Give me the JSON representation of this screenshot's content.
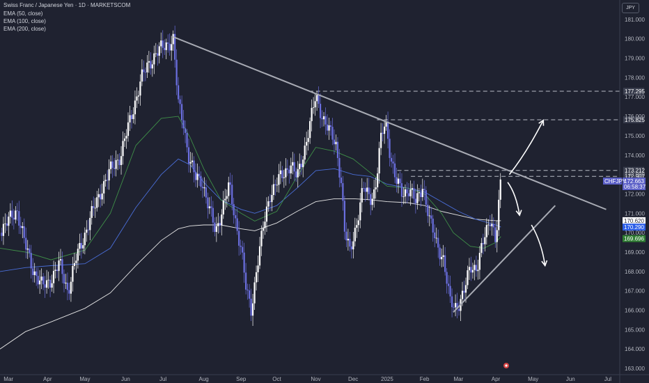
{
  "chart_data": {
    "type": "candlestick",
    "title": "Swiss Franc / Japanese Yen · 1D · MARKETSCOM",
    "currency": "JPY",
    "symbol": "CHFJPY",
    "indicators": [
      "EMA (50, close)",
      "EMA (100, close)",
      "EMA (200, close)"
    ],
    "y_ticks": [
      163,
      164,
      165,
      166,
      167,
      168,
      169,
      170,
      171,
      172,
      173,
      174,
      175,
      176,
      177,
      178,
      179,
      180,
      181
    ],
    "y_tick_labels": [
      "163.000",
      "164.000",
      "165.000",
      "166.000",
      "167.000",
      "168.000",
      "169.000",
      "170.000",
      "171.000",
      "172.000",
      "173.000",
      "174.000",
      "175.000",
      "176.000",
      "177.000",
      "178.000",
      "179.000",
      "180.000",
      "181.000"
    ],
    "ylim": [
      162.68,
      182.0
    ],
    "x_labels": [
      "Mar",
      "Apr",
      "May",
      "Jun",
      "Jul",
      "Aug",
      "Sep",
      "Oct",
      "Nov",
      "Dec",
      "2025",
      "Feb",
      "Mar",
      "Apr",
      "May",
      "Jun",
      "Jul"
    ],
    "x_label_pos": [
      0,
      23,
      45,
      69,
      91,
      115,
      137,
      158,
      181,
      203,
      223,
      245,
      265,
      287,
      309,
      331,
      353
    ],
    "xlim": [
      -5,
      360
    ],
    "levels": [
      {
        "value": 177.295,
        "label": "177.295",
        "x_start": 177
      },
      {
        "value": 175.825,
        "label": "175.825",
        "x_start": 217
      },
      {
        "value": 173.212,
        "label": "173.212",
        "x_start": 229
      },
      {
        "value": 172.907,
        "label": "172.907",
        "x_start": 237
      }
    ],
    "price_badges": [
      {
        "value": 172.663,
        "label": "172.663",
        "sub": "06:58:37",
        "color": "#5b5fc7"
      },
      {
        "value": 170.62,
        "label": "170.620",
        "color": "#ffffff",
        "text": "#1f2230"
      },
      {
        "value": 170.29,
        "label": "170.290",
        "color": "#2c5ee8"
      },
      {
        "value": 169.696,
        "label": "169.696",
        "color": "#2e7d32"
      }
    ],
    "trendlines": [
      {
        "name": "descending resistance",
        "x": [
          97,
          352
        ],
        "y": [
          180.1,
          171.2
        ]
      },
      {
        "name": "ascending support",
        "x": [
          262,
          322
        ],
        "y": [
          165.9,
          171.4
        ]
      }
    ],
    "ema50": {
      "x": [
        -5,
        10,
        25,
        45,
        60,
        75,
        90,
        100,
        107,
        115,
        125,
        137,
        145,
        158,
        170,
        181,
        192,
        203,
        213,
        223,
        235,
        245,
        255,
        262,
        272,
        280,
        287,
        290
      ],
      "y": [
        169.2,
        169.0,
        168.6,
        169.1,
        171.0,
        174.5,
        175.9,
        176.0,
        174.9,
        173.3,
        171.7,
        171.0,
        170.6,
        171.1,
        172.9,
        174.4,
        174.2,
        173.8,
        173.1,
        172.4,
        172.3,
        172.0,
        171.0,
        170.0,
        169.3,
        169.2,
        169.5,
        169.8
      ]
    },
    "ema100": {
      "x": [
        -5,
        10,
        25,
        45,
        60,
        75,
        90,
        100,
        107,
        115,
        125,
        137,
        145,
        158,
        170,
        181,
        192,
        203,
        213,
        223,
        235,
        245,
        255,
        265,
        275,
        287,
        290
      ],
      "y": [
        168.0,
        168.2,
        168.3,
        168.4,
        169.2,
        171.3,
        173.0,
        173.8,
        173.5,
        172.6,
        171.7,
        171.2,
        171.0,
        171.4,
        172.3,
        173.2,
        173.3,
        173.0,
        172.9,
        172.5,
        172.3,
        172.1,
        171.6,
        171.1,
        170.7,
        170.4,
        170.29
      ]
    },
    "ema200": {
      "x": [
        -5,
        10,
        25,
        45,
        60,
        75,
        90,
        100,
        107,
        115,
        125,
        137,
        145,
        158,
        170,
        181,
        192,
        203,
        213,
        223,
        235,
        245,
        255,
        265,
        275,
        287,
        290
      ],
      "y": [
        164.0,
        164.9,
        165.4,
        166.1,
        166.9,
        168.3,
        169.6,
        170.2,
        170.35,
        170.4,
        170.4,
        170.2,
        170.1,
        170.5,
        171.1,
        171.6,
        171.75,
        171.75,
        171.7,
        171.6,
        171.55,
        171.4,
        171.1,
        170.9,
        170.7,
        170.62,
        170.62
      ]
    },
    "price_path": {
      "x": [
        -5,
        5,
        10,
        15,
        20,
        25,
        30,
        35,
        40,
        48,
        55,
        60,
        66,
        72,
        78,
        82,
        87,
        92,
        97,
        100,
        103,
        106,
        110,
        114,
        118,
        122,
        126,
        130,
        134,
        137,
        140,
        143,
        146,
        150,
        154,
        158,
        162,
        166,
        170,
        174,
        178,
        181,
        185,
        189,
        193,
        196,
        198,
        201,
        205,
        209,
        213,
        216,
        219,
        222,
        225,
        228,
        232,
        236,
        240,
        244,
        248,
        252,
        256,
        260,
        264,
        268,
        272,
        276,
        280,
        284,
        287,
        290
      ],
      "y": [
        170.0,
        171.2,
        169.3,
        168.0,
        167.2,
        167.6,
        168.4,
        167.0,
        168.7,
        170.7,
        172.3,
        173.2,
        174.0,
        175.9,
        177.9,
        178.6,
        179.3,
        179.6,
        180.0,
        176.6,
        175.7,
        174.0,
        172.8,
        172.7,
        171.3,
        170.0,
        171.3,
        172.4,
        170.5,
        169.2,
        167.0,
        166.0,
        168.1,
        170.2,
        172.0,
        172.6,
        173.0,
        173.6,
        172.8,
        174.2,
        175.8,
        177.0,
        176.0,
        175.2,
        174.5,
        172.6,
        170.0,
        169.0,
        170.5,
        172.3,
        171.8,
        172.2,
        174.6,
        175.8,
        174.0,
        172.7,
        172.0,
        172.3,
        171.5,
        172.5,
        170.6,
        169.5,
        168.7,
        166.4,
        166.2,
        166.8,
        168.3,
        168.2,
        169.6,
        170.9,
        169.5,
        172.66
      ]
    },
    "arrows": [
      {
        "name": "breakout up",
        "path": [
          [
            295,
            173.0
          ],
          [
            305,
            174.1
          ],
          [
            315,
            175.8
          ]
        ]
      },
      {
        "name": "pullback",
        "path": [
          [
            294,
            172.6
          ],
          [
            299,
            172.0
          ],
          [
            301,
            170.9
          ]
        ]
      },
      {
        "name": "breakdown",
        "path": [
          [
            308,
            170.4
          ],
          [
            314,
            169.5
          ],
          [
            316,
            168.3
          ]
        ]
      }
    ],
    "grid": false,
    "legend_position": "top-left"
  }
}
